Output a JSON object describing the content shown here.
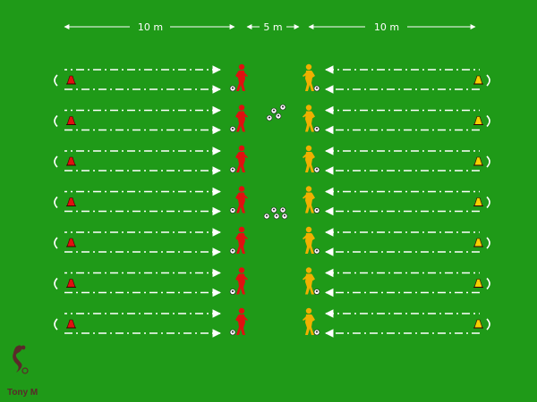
{
  "dimensions": {
    "left_label": "10 m",
    "middle_label": "5 m",
    "right_label": "10 m"
  },
  "credit": "Tony M",
  "lanes": 7,
  "colors": {
    "pitch": "#1f9a18",
    "left_team": "#e01010",
    "right_team": "#f0b000",
    "left_cone": "#e01010",
    "right_cone": "#f5d000",
    "path": "#ffffff",
    "ball": "#ffffff"
  },
  "icons": {
    "left_player": "red-player-icon",
    "right_player": "yellow-player-icon",
    "left_cone": "red-cone-icon",
    "right_cone": "yellow-cone-icon",
    "ball": "ball-icon",
    "logo": "player-logo-icon"
  }
}
